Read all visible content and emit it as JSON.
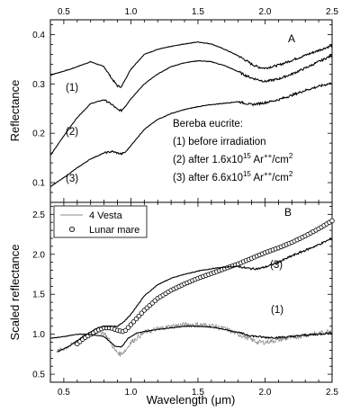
{
  "chart_data": [
    {
      "panel": "A",
      "type": "line",
      "xlabel": "",
      "ylabel": "Reflectance",
      "xlim": [
        0.4,
        2.5
      ],
      "ylim": [
        0.06,
        0.43
      ],
      "x_ticks": [
        "0.5",
        "1.0",
        "1.5",
        "2.0",
        "2.5"
      ],
      "y_ticks": [
        "0.1",
        "0.2",
        "0.3",
        "0.4"
      ],
      "panel_label": "A",
      "legend": {
        "title": "Bereba eucrite:",
        "items": [
          "(1) before irradiation",
          "(2) after 1.6x10^15 Ar^++/cm^2",
          "(3) after 6.6x10^15 Ar^++/cm^2"
        ]
      },
      "series": [
        {
          "name": "(1)",
          "x": [
            0.4,
            0.55,
            0.7,
            0.8,
            0.86,
            0.9,
            0.93,
            0.96,
            1.0,
            1.1,
            1.2,
            1.3,
            1.4,
            1.5,
            1.6,
            1.7,
            1.8,
            1.85,
            1.9,
            1.95,
            2.0,
            2.1,
            2.2,
            2.3,
            2.4,
            2.5
          ],
          "y": [
            0.318,
            0.33,
            0.345,
            0.335,
            0.31,
            0.296,
            0.294,
            0.31,
            0.33,
            0.36,
            0.37,
            0.376,
            0.381,
            0.385,
            0.381,
            0.37,
            0.357,
            0.349,
            0.34,
            0.334,
            0.332,
            0.338,
            0.348,
            0.358,
            0.368,
            0.378
          ]
        },
        {
          "name": "(2)",
          "x": [
            0.4,
            0.5,
            0.6,
            0.7,
            0.8,
            0.86,
            0.9,
            0.93,
            0.96,
            1.0,
            1.1,
            1.2,
            1.3,
            1.4,
            1.5,
            1.6,
            1.7,
            1.8,
            1.85,
            1.9,
            2.0,
            2.1,
            2.2,
            2.3,
            2.4,
            2.5
          ],
          "y": [
            0.155,
            0.195,
            0.232,
            0.26,
            0.268,
            0.258,
            0.248,
            0.246,
            0.255,
            0.27,
            0.3,
            0.32,
            0.335,
            0.343,
            0.347,
            0.345,
            0.337,
            0.325,
            0.318,
            0.312,
            0.305,
            0.31,
            0.32,
            0.332,
            0.345,
            0.358
          ]
        },
        {
          "name": "(3)",
          "x": [
            0.4,
            0.5,
            0.6,
            0.7,
            0.8,
            0.86,
            0.9,
            0.93,
            0.96,
            1.0,
            1.1,
            1.2,
            1.3,
            1.4,
            1.5,
            1.6,
            1.7,
            1.8,
            1.85,
            1.9,
            2.0,
            2.1,
            2.2,
            2.3,
            2.4,
            2.5
          ],
          "y": [
            0.092,
            0.11,
            0.13,
            0.148,
            0.16,
            0.163,
            0.16,
            0.158,
            0.162,
            0.175,
            0.208,
            0.228,
            0.24,
            0.248,
            0.254,
            0.258,
            0.261,
            0.264,
            0.261,
            0.258,
            0.262,
            0.268,
            0.277,
            0.287,
            0.295,
            0.302
          ]
        }
      ]
    },
    {
      "panel": "B",
      "type": "line",
      "xlabel": "Wavelength (μm)",
      "ylabel": "Scaled reflectance",
      "xlim": [
        0.4,
        2.5
      ],
      "ylim": [
        0.4,
        2.65
      ],
      "x_ticks": [
        "0.5",
        "1.0",
        "1.5",
        "2.0",
        "2.5"
      ],
      "y_ticks": [
        "0.5",
        "1.0",
        "1.5",
        "2.0",
        "2.5"
      ],
      "panel_label": "B",
      "legend": [
        "4 Vesta",
        "Lunar mare"
      ],
      "curve_labels": [
        "(3)",
        "(1)"
      ],
      "series": [
        {
          "name": "4 Vesta",
          "style": "noisy gray",
          "x": [
            0.45,
            0.55,
            0.65,
            0.75,
            0.8,
            0.85,
            0.88,
            0.92,
            0.96,
            1.0,
            1.1,
            1.2,
            1.3,
            1.4,
            1.5,
            1.6,
            1.7,
            1.8,
            1.85,
            1.9,
            1.95,
            2.0,
            2.1,
            2.2,
            2.3,
            2.4,
            2.5
          ],
          "y": [
            0.78,
            0.86,
            0.95,
            1.03,
            1.02,
            0.9,
            0.8,
            0.75,
            0.8,
            0.9,
            1.02,
            1.07,
            1.1,
            1.12,
            1.12,
            1.11,
            1.07,
            1.0,
            0.97,
            0.93,
            0.9,
            0.9,
            0.93,
            0.96,
            0.99,
            1.01,
            1.05
          ]
        },
        {
          "name": "Lunar mare",
          "style": "open circles",
          "x": [
            0.6,
            0.65,
            0.7,
            0.75,
            0.8,
            0.85,
            0.9,
            0.95,
            1.0,
            1.1,
            1.2,
            1.3,
            1.4,
            1.5,
            1.6,
            1.7,
            1.8,
            1.9,
            2.0,
            2.1,
            2.2,
            2.3,
            2.4,
            2.5
          ],
          "y": [
            0.88,
            0.95,
            1.0,
            1.05,
            1.08,
            1.08,
            1.05,
            1.03,
            1.12,
            1.3,
            1.45,
            1.55,
            1.63,
            1.7,
            1.76,
            1.82,
            1.88,
            1.95,
            2.02,
            2.08,
            2.15,
            2.23,
            2.32,
            2.42
          ]
        },
        {
          "name": "(3)",
          "x": [
            0.45,
            0.55,
            0.65,
            0.75,
            0.8,
            0.85,
            0.9,
            0.95,
            1.0,
            1.1,
            1.2,
            1.3,
            1.4,
            1.5,
            1.6,
            1.7,
            1.8,
            1.85,
            1.9,
            1.95,
            2.0,
            2.1,
            2.2,
            2.3,
            2.4,
            2.5
          ],
          "y": [
            0.78,
            0.86,
            0.98,
            1.08,
            1.1,
            1.1,
            1.1,
            1.16,
            1.25,
            1.48,
            1.62,
            1.7,
            1.75,
            1.79,
            1.82,
            1.84,
            1.85,
            1.83,
            1.82,
            1.82,
            1.84,
            1.9,
            1.98,
            2.05,
            2.12,
            2.2
          ]
        },
        {
          "name": "(1)",
          "x": [
            0.4,
            0.5,
            0.6,
            0.7,
            0.8,
            0.85,
            0.88,
            0.93,
            0.98,
            1.05,
            1.2,
            1.3,
            1.4,
            1.5,
            1.6,
            1.7,
            1.8,
            1.9,
            2.0,
            2.1,
            2.2,
            2.3,
            2.4,
            2.5
          ],
          "y": [
            0.95,
            0.97,
            1.0,
            1.0,
            0.97,
            0.9,
            0.85,
            0.84,
            0.95,
            1.02,
            1.06,
            1.08,
            1.1,
            1.1,
            1.09,
            1.06,
            1.02,
            0.98,
            0.96,
            0.96,
            0.97,
            0.99,
            1.0,
            1.02
          ]
        }
      ]
    }
  ]
}
